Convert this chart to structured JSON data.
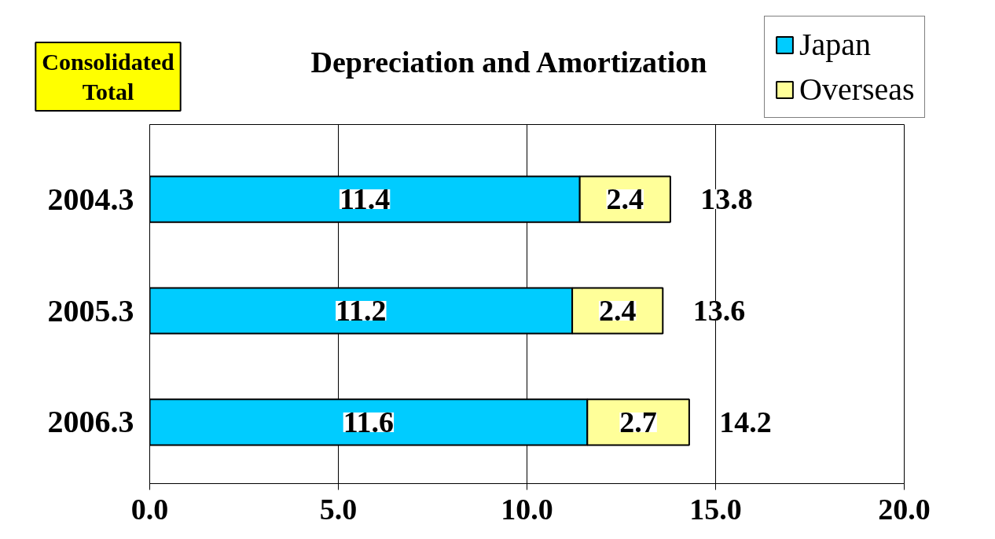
{
  "chart_data": {
    "type": "bar",
    "orientation": "horizontal",
    "stacked": true,
    "title": "Depreciation and Amortization",
    "annotations": [
      "Consolidated Total"
    ],
    "categories": [
      "2004.3",
      "2005.3",
      "2006.3"
    ],
    "series": [
      {
        "name": "Japan",
        "color": "#00ccff",
        "values": [
          11.4,
          11.2,
          11.6
        ]
      },
      {
        "name": "Overseas",
        "color": "#ffff99",
        "values": [
          2.4,
          2.4,
          2.7
        ]
      }
    ],
    "totals": [
      "13.8",
      "13.6",
      "14.2"
    ],
    "xlim": [
      0,
      20
    ],
    "xticks": [
      {
        "value": 0,
        "label": "0.0"
      },
      {
        "value": 5,
        "label": "5.0"
      },
      {
        "value": 10,
        "label": "10.0"
      },
      {
        "value": 15,
        "label": "15.0"
      },
      {
        "value": 20,
        "label": "20.0"
      }
    ],
    "grid": "x",
    "legend": "top right",
    "data_labels": true
  }
}
